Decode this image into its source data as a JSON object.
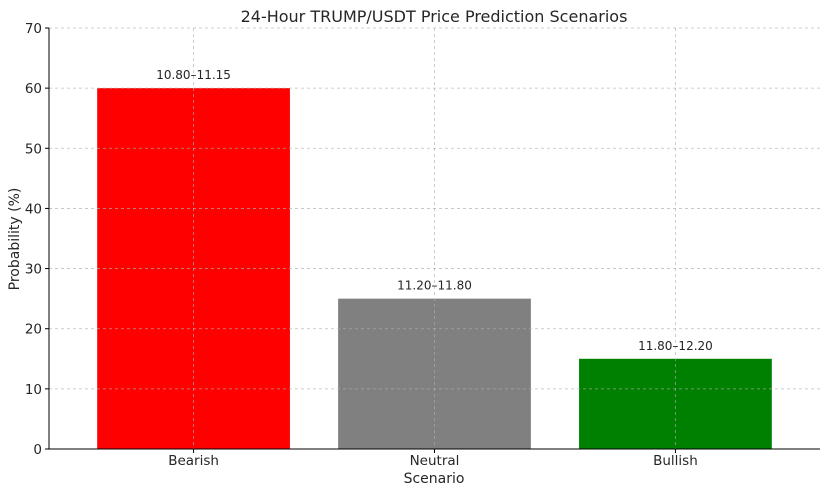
{
  "chart_data": {
    "type": "bar",
    "title": "24-Hour TRUMP/USDT Price Prediction Scenarios",
    "xlabel": "Scenario",
    "ylabel": "Probability (%)",
    "categories": [
      "Bearish",
      "Neutral",
      "Bullish"
    ],
    "values": [
      60,
      25,
      15
    ],
    "data_labels": [
      "10.80–11.15",
      "11.20–11.80",
      "11.80–12.20"
    ],
    "colors": [
      "#ff0000",
      "#808080",
      "#008000"
    ],
    "ylim": [
      0,
      70
    ],
    "yticks": [
      0,
      10,
      20,
      30,
      40,
      50,
      60,
      70
    ],
    "grid": true,
    "legend": "none"
  }
}
